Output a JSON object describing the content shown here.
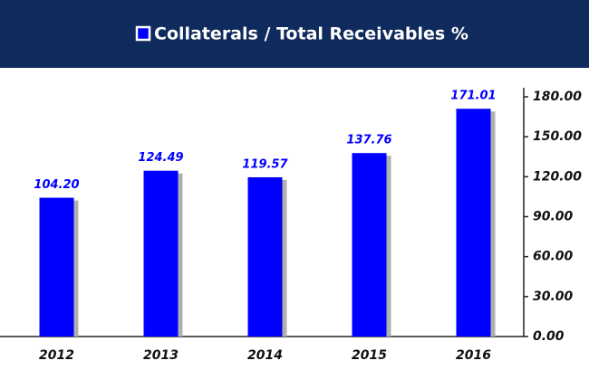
{
  "chart_data": {
    "type": "bar",
    "categories": [
      "2012",
      "2013",
      "2014",
      "2015",
      "2016"
    ],
    "series": [
      {
        "name": "Collaterals / Total Receivables %",
        "color": "#0000ff",
        "values": [
          104.2,
          124.49,
          119.57,
          137.76,
          171.01
        ],
        "value_labels": [
          "104.20",
          "124.49",
          "119.57",
          "137.76",
          "171.01"
        ]
      }
    ],
    "ylim": [
      0,
      180
    ],
    "yticks": [
      {
        "value": 0,
        "label": "0.00"
      },
      {
        "value": 30,
        "label": "30.00"
      },
      {
        "value": 60,
        "label": "60.00"
      },
      {
        "value": 90,
        "label": "90.00"
      },
      {
        "value": 120,
        "label": "120.00"
      },
      {
        "value": 150,
        "label": "150.00"
      },
      {
        "value": 180,
        "label": "180.00"
      }
    ],
    "grid": false,
    "legend": "top"
  }
}
